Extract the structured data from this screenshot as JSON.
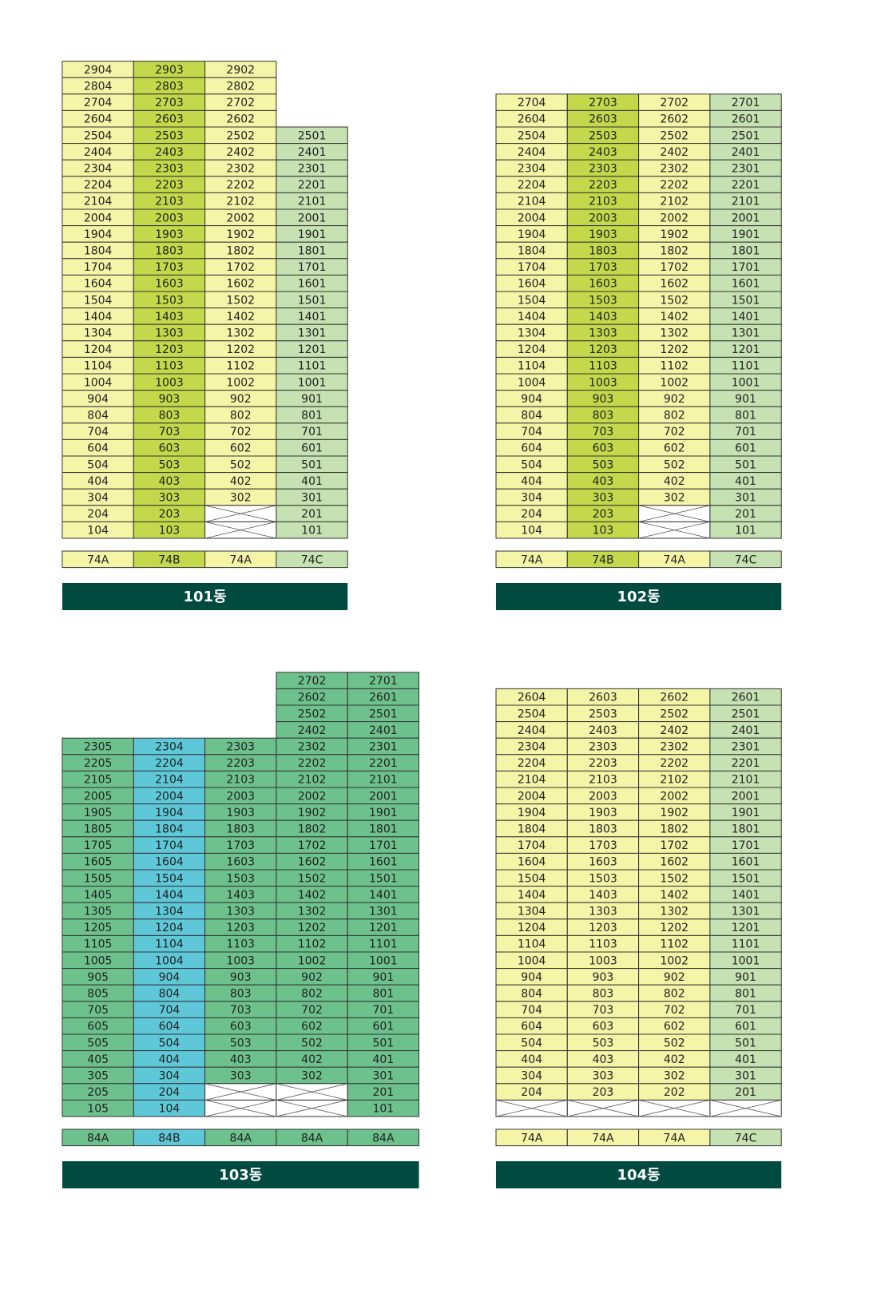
{
  "buildings": [
    {
      "name": "101동",
      "columns": [
        {
          "type": "74A",
          "color": "#f5f5a8",
          "units": [
            2904,
            2804,
            2704,
            2604,
            2504,
            2404,
            2304,
            2204,
            2104,
            2004,
            1904,
            1804,
            1704,
            1604,
            1504,
            1404,
            1304,
            1204,
            1104,
            1004,
            904,
            804,
            704,
            604,
            504,
            404,
            304,
            204,
            104
          ]
        },
        {
          "type": "74B",
          "color": "#c3d84a",
          "units": [
            2903,
            2803,
            2703,
            2603,
            2503,
            2403,
            2303,
            2203,
            2103,
            2003,
            1903,
            1803,
            1703,
            1603,
            1503,
            1403,
            1303,
            1203,
            1103,
            1003,
            903,
            803,
            703,
            603,
            503,
            403,
            303,
            203,
            103
          ]
        },
        {
          "type": "74A",
          "color": "#f5f5a8",
          "units": [
            2902,
            2802,
            2702,
            2602,
            2502,
            2402,
            2302,
            2202,
            2102,
            2002,
            1902,
            1802,
            1702,
            1602,
            1502,
            1402,
            1302,
            1202,
            1102,
            1002,
            902,
            802,
            702,
            602,
            502,
            402,
            302,
            null,
            null
          ]
        },
        {
          "type": "74C",
          "color": "#c6e1b2",
          "units": [
            2501,
            2401,
            2301,
            2201,
            2101,
            2001,
            1901,
            1801,
            1701,
            1601,
            1501,
            1401,
            1301,
            1201,
            1101,
            1001,
            901,
            801,
            701,
            601,
            501,
            401,
            301,
            201,
            101
          ]
        }
      ]
    },
    {
      "name": "102동",
      "columns": [
        {
          "type": "74A",
          "color": "#f5f5a8",
          "units": [
            2704,
            2604,
            2504,
            2404,
            2304,
            2204,
            2104,
            2004,
            1904,
            1804,
            1704,
            1604,
            1504,
            1404,
            1304,
            1204,
            1104,
            1004,
            904,
            804,
            704,
            604,
            504,
            404,
            304,
            204,
            104
          ]
        },
        {
          "type": "74B",
          "color": "#c3d84a",
          "units": [
            2703,
            2603,
            2503,
            2403,
            2303,
            2203,
            2103,
            2003,
            1903,
            1803,
            1703,
            1603,
            1503,
            1403,
            1303,
            1203,
            1103,
            1003,
            903,
            803,
            703,
            603,
            503,
            403,
            303,
            203,
            103
          ]
        },
        {
          "type": "74A",
          "color": "#f5f5a8",
          "units": [
            2702,
            2602,
            2502,
            2402,
            2302,
            2202,
            2102,
            2002,
            1902,
            1802,
            1702,
            1602,
            1502,
            1402,
            1302,
            1202,
            1102,
            1002,
            902,
            802,
            702,
            602,
            502,
            402,
            302,
            null,
            null
          ]
        },
        {
          "type": "74C",
          "color": "#c6e1b2",
          "units": [
            2701,
            2601,
            2501,
            2401,
            2301,
            2201,
            2101,
            2001,
            1901,
            1801,
            1701,
            1601,
            1501,
            1401,
            1301,
            1201,
            1101,
            1001,
            901,
            801,
            701,
            601,
            501,
            401,
            301,
            201,
            101
          ]
        }
      ]
    },
    {
      "name": "103동",
      "columns": [
        {
          "type": "84A",
          "color": "#6dc18c",
          "units": [
            2305,
            2205,
            2105,
            2005,
            1905,
            1805,
            1705,
            1605,
            1505,
            1405,
            1305,
            1205,
            1105,
            1005,
            905,
            805,
            705,
            605,
            505,
            405,
            305,
            205,
            105
          ]
        },
        {
          "type": "84B",
          "color": "#5fc8d8",
          "units": [
            2304,
            2204,
            2104,
            2004,
            1904,
            1804,
            1704,
            1604,
            1504,
            1404,
            1304,
            1204,
            1104,
            1004,
            904,
            804,
            704,
            604,
            504,
            404,
            304,
            204,
            104
          ]
        },
        {
          "type": "84A",
          "color": "#6dc18c",
          "units": [
            2303,
            2203,
            2103,
            2003,
            1903,
            1803,
            1703,
            1603,
            1503,
            1403,
            1303,
            1203,
            1103,
            1003,
            903,
            803,
            703,
            603,
            503,
            403,
            303,
            null,
            null
          ]
        },
        {
          "type": "84A",
          "color": "#6dc18c",
          "units": [
            2702,
            2602,
            2502,
            2402,
            2302,
            2202,
            2102,
            2002,
            1902,
            1802,
            1702,
            1602,
            1502,
            1402,
            1302,
            1202,
            1102,
            1002,
            902,
            802,
            702,
            602,
            502,
            402,
            302,
            null,
            null
          ]
        },
        {
          "type": "84A",
          "color": "#6dc18c",
          "units": [
            2701,
            2601,
            2501,
            2401,
            2301,
            2201,
            2101,
            2001,
            1901,
            1801,
            1701,
            1601,
            1501,
            1401,
            1301,
            1201,
            1101,
            1001,
            901,
            801,
            701,
            601,
            501,
            401,
            301,
            201,
            101
          ]
        }
      ]
    },
    {
      "name": "104동",
      "columns": [
        {
          "type": "74A",
          "color": "#f5f5a8",
          "units": [
            2604,
            2504,
            2404,
            2304,
            2204,
            2104,
            2004,
            1904,
            1804,
            1704,
            1604,
            1504,
            1404,
            1304,
            1204,
            1104,
            1004,
            904,
            804,
            704,
            604,
            504,
            404,
            304,
            204,
            null
          ]
        },
        {
          "type": "74A",
          "color": "#f5f5a8",
          "units": [
            2603,
            2503,
            2403,
            2303,
            2203,
            2103,
            2003,
            1903,
            1803,
            1703,
            1603,
            1503,
            1403,
            1303,
            1203,
            1103,
            1003,
            903,
            803,
            703,
            603,
            503,
            403,
            303,
            203,
            null
          ]
        },
        {
          "type": "74A",
          "color": "#f5f5a8",
          "units": [
            2602,
            2502,
            2402,
            2302,
            2202,
            2102,
            2002,
            1902,
            1802,
            1702,
            1602,
            1502,
            1402,
            1302,
            1202,
            1102,
            1002,
            902,
            802,
            702,
            602,
            502,
            402,
            302,
            202,
            null
          ]
        },
        {
          "type": "74C",
          "color": "#c6e1b2",
          "units": [
            2601,
            2501,
            2401,
            2301,
            2201,
            2101,
            2001,
            1901,
            1801,
            1701,
            1601,
            1501,
            1401,
            1301,
            1201,
            1101,
            1001,
            901,
            801,
            701,
            601,
            501,
            401,
            301,
            201,
            null
          ]
        }
      ]
    }
  ]
}
